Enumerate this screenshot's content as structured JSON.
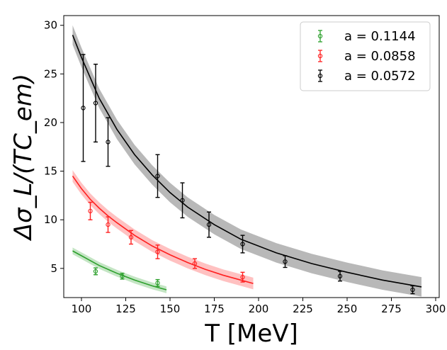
{
  "chart_data": {
    "type": "scatter",
    "title": "",
    "xlabel": "T [MeV]",
    "ylabel": "Δσ_L/(TC_em)",
    "xlim": [
      90,
      302
    ],
    "ylim": [
      2,
      31
    ],
    "xticks": [
      100,
      125,
      150,
      175,
      200,
      225,
      250,
      275,
      300
    ],
    "yticks": [
      5,
      10,
      15,
      20,
      25,
      30
    ],
    "legend_position": "top-right",
    "series": [
      {
        "name": "a = 0.1144",
        "color": "#2ca02c",
        "fit_x": [
          95,
          98,
          102,
          106,
          110,
          115,
          120,
          125,
          130,
          135,
          140,
          145,
          148
        ],
        "fit_y": [
          6.8,
          6.5,
          6.1,
          5.7,
          5.3,
          4.9,
          4.5,
          4.15,
          3.8,
          3.5,
          3.2,
          2.95,
          2.8
        ],
        "band_width": 0.35,
        "points": [
          {
            "x": 108,
            "y": 4.7,
            "err": 0.35
          },
          {
            "x": 123,
            "y": 4.2,
            "err": 0.3
          },
          {
            "x": 143,
            "y": 3.5,
            "err": 0.35
          }
        ]
      },
      {
        "name": "a = 0.0858",
        "color": "#ff2020",
        "fit_x": [
          95,
          100,
          105,
          110,
          115,
          120,
          130,
          140,
          150,
          160,
          170,
          180,
          190,
          197
        ],
        "fit_y": [
          14.5,
          13.2,
          12.1,
          11.2,
          10.4,
          9.7,
          8.4,
          7.3,
          6.4,
          5.6,
          4.9,
          4.3,
          3.8,
          3.45
        ],
        "band_width": 0.6,
        "points": [
          {
            "x": 105,
            "y": 10.9,
            "err": 0.9
          },
          {
            "x": 115,
            "y": 9.5,
            "err": 0.8
          },
          {
            "x": 128,
            "y": 8.2,
            "err": 0.7
          },
          {
            "x": 143,
            "y": 6.7,
            "err": 0.7
          },
          {
            "x": 164,
            "y": 5.5,
            "err": 0.5
          },
          {
            "x": 191,
            "y": 4.1,
            "err": 0.5
          }
        ]
      },
      {
        "name": "a = 0.0572",
        "color": "#000000",
        "fit_x": [
          95,
          100,
          110,
          120,
          130,
          140,
          150,
          160,
          175,
          190,
          210,
          230,
          250,
          270,
          292
        ],
        "fit_y": [
          29.0,
          26.7,
          22.5,
          19.3,
          16.7,
          14.6,
          12.8,
          11.3,
          9.5,
          8.0,
          6.6,
          5.5,
          4.6,
          3.8,
          3.1
        ],
        "band_width": 1.0,
        "points": [
          {
            "x": 101,
            "y": 21.5,
            "err": 5.5
          },
          {
            "x": 108,
            "y": 22.0,
            "err": 4.0
          },
          {
            "x": 115,
            "y": 18.0,
            "err": 2.5
          },
          {
            "x": 143,
            "y": 14.5,
            "err": 2.2
          },
          {
            "x": 157,
            "y": 12.0,
            "err": 1.8
          },
          {
            "x": 172,
            "y": 9.5,
            "err": 1.3
          },
          {
            "x": 191,
            "y": 7.5,
            "err": 0.9
          },
          {
            "x": 215,
            "y": 5.7,
            "err": 0.6
          },
          {
            "x": 246,
            "y": 4.2,
            "err": 0.5
          },
          {
            "x": 287,
            "y": 2.8,
            "err": 0.4
          }
        ]
      }
    ]
  }
}
